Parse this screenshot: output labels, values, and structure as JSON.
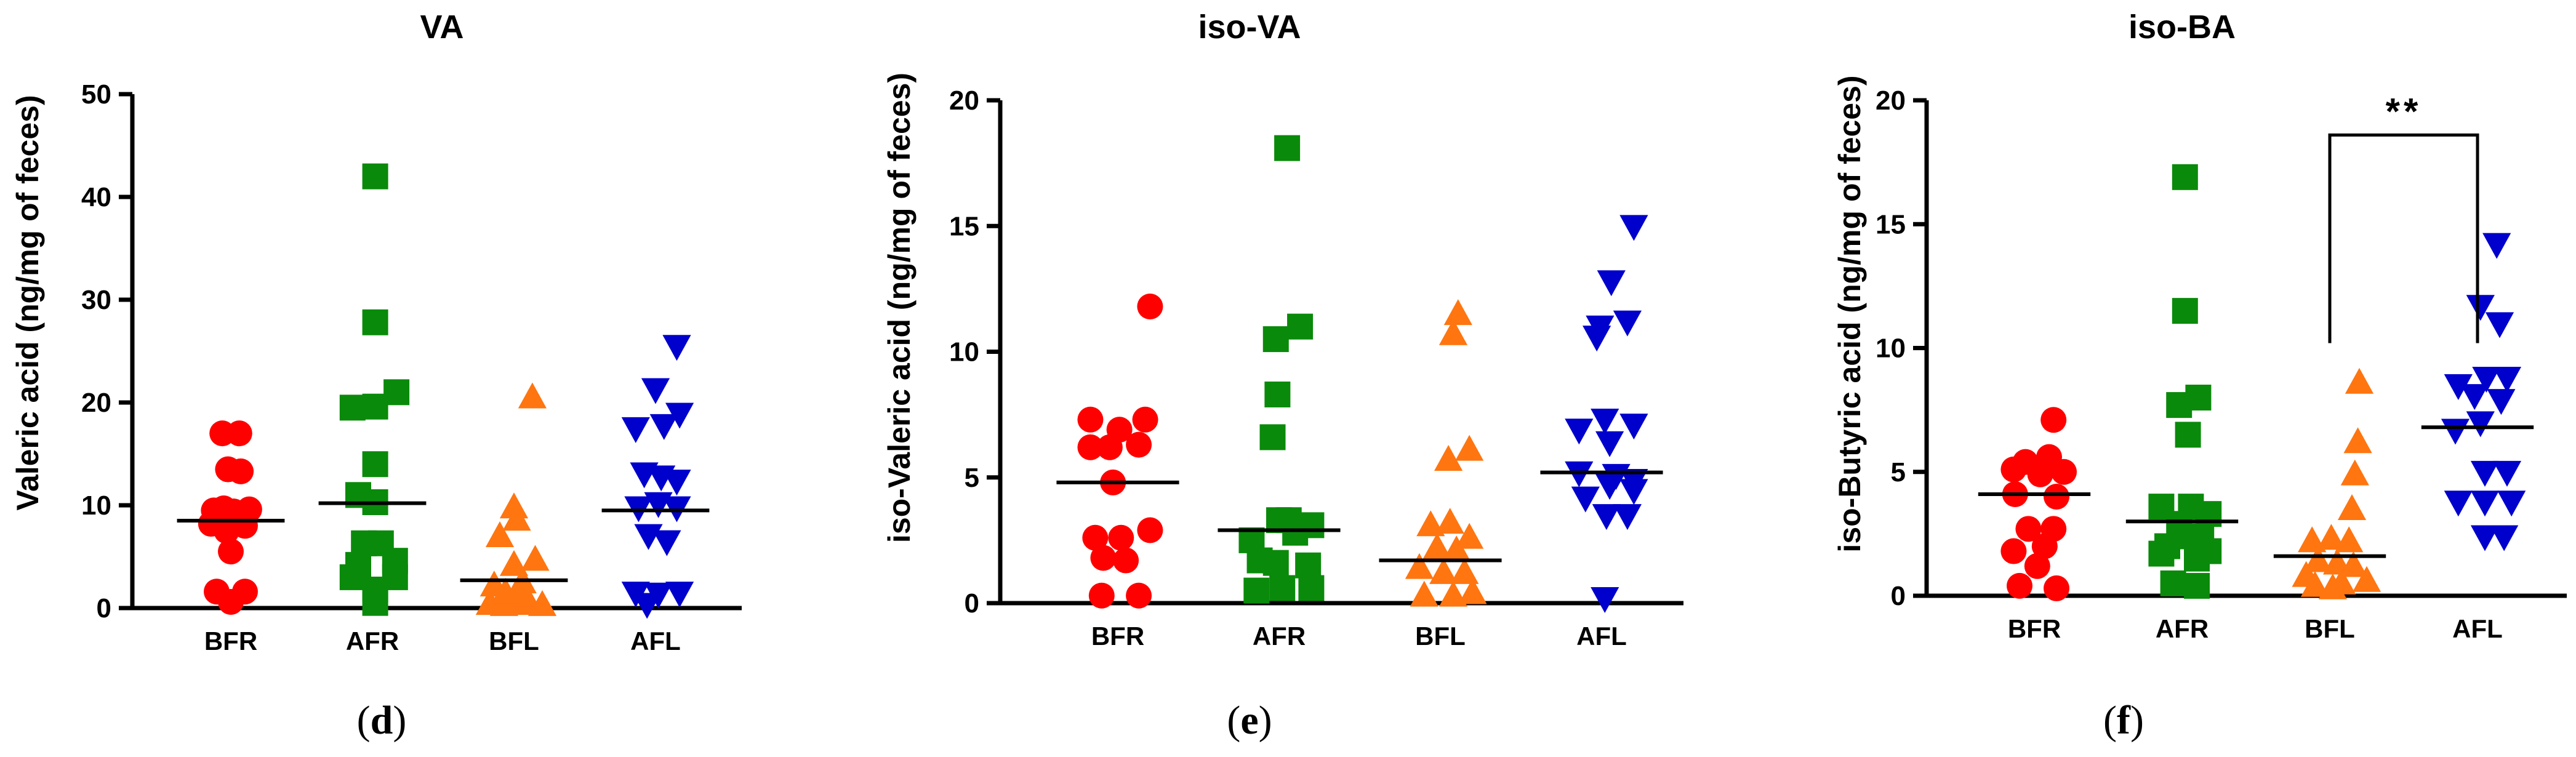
{
  "chart_data": [
    {
      "type": "scatter",
      "title": "VA",
      "panel_label": "(d)",
      "ylabel": "Valeric acid (ng/mg of feces)",
      "ylim": [
        0,
        50
      ],
      "yticks": [
        "0",
        "10",
        "20",
        "30",
        "40",
        "50"
      ],
      "categories": [
        "BFR",
        "AFR",
        "BFL",
        "AFL"
      ],
      "series": [
        {
          "name": "BFR",
          "marker": "circle",
          "color": "#ff0000",
          "median": 8.5,
          "points": [
            [
              -0.06,
              17
            ],
            [
              0.06,
              17
            ],
            [
              -0.02,
              13.5
            ],
            [
              0.07,
              13.3
            ],
            [
              -0.12,
              9.5
            ],
            [
              -0.05,
              9.7
            ],
            [
              0.02,
              9.4
            ],
            [
              0.13,
              9.6
            ],
            [
              -0.14,
              8.2
            ],
            [
              0.1,
              8
            ],
            [
              -0.03,
              7.5
            ],
            [
              0,
              5.5
            ],
            [
              -0.1,
              1.6
            ],
            [
              0.1,
              1.6
            ],
            [
              0,
              0.6
            ]
          ]
        },
        {
          "name": "AFR",
          "marker": "square",
          "color": "#0a8a0a",
          "median": 10.2,
          "points": [
            [
              0.02,
              42
            ],
            [
              0.02,
              27.8
            ],
            [
              -0.14,
              19.5
            ],
            [
              0.02,
              19.6
            ],
            [
              0.17,
              21
            ],
            [
              0.02,
              14
            ],
            [
              -0.1,
              11
            ],
            [
              0.02,
              10.3
            ],
            [
              -0.06,
              6.3
            ],
            [
              0.06,
              6.3
            ],
            [
              -0.1,
              4.2
            ],
            [
              0.16,
              4.6
            ],
            [
              -0.14,
              3
            ],
            [
              0.16,
              3
            ],
            [
              0.02,
              1.8
            ],
            [
              0.02,
              0.5
            ]
          ]
        },
        {
          "name": "BFL",
          "marker": "triangle-up",
          "color": "#ff7510",
          "median": 2.7,
          "points": [
            [
              0.13,
              20.5
            ],
            [
              0,
              9.8
            ],
            [
              -0.1,
              7
            ],
            [
              0.02,
              8.6
            ],
            [
              0.15,
              4.7
            ],
            [
              0,
              4.2
            ],
            [
              -0.14,
              2.2
            ],
            [
              0.06,
              2.5
            ],
            [
              -0.17,
              0.4
            ],
            [
              -0.07,
              0.3
            ],
            [
              0.02,
              0.5
            ],
            [
              0.11,
              0.4
            ],
            [
              0.2,
              0.3
            ],
            [
              0.07,
              1.2
            ],
            [
              -0.06,
              1.5
            ]
          ]
        },
        {
          "name": "AFL",
          "marker": "triangle-down",
          "color": "#0000cc",
          "median": 9.5,
          "points": [
            [
              0.15,
              25.5
            ],
            [
              0,
              21.3
            ],
            [
              0.17,
              18.9
            ],
            [
              -0.14,
              17.5
            ],
            [
              0.06,
              17.8
            ],
            [
              -0.08,
              13.1
            ],
            [
              0.04,
              12.8
            ],
            [
              0.15,
              12.4
            ],
            [
              -0.12,
              9.8
            ],
            [
              0.02,
              10.2
            ],
            [
              0.15,
              9.8
            ],
            [
              -0.05,
              7.1
            ],
            [
              0.08,
              6.5
            ],
            [
              -0.14,
              1.5
            ],
            [
              0.02,
              1.4
            ],
            [
              0.17,
              1.5
            ],
            [
              -0.06,
              0.4
            ]
          ]
        }
      ]
    },
    {
      "type": "scatter",
      "title": "iso-VA",
      "panel_label": "(e)",
      "ylabel": "iso-Valeric acid (ng/mg of feces)",
      "ylim": [
        0,
        20
      ],
      "yticks": [
        "0",
        "5",
        "10",
        "15",
        "20"
      ],
      "categories": [
        "BFR",
        "AFR",
        "BFL",
        "AFL"
      ],
      "series": [
        {
          "name": "BFR",
          "marker": "circle",
          "color": "#ff0000",
          "median": 4.8,
          "points": [
            [
              0.2,
              11.8
            ],
            [
              -0.17,
              7.3
            ],
            [
              0.01,
              6.9
            ],
            [
              0.17,
              7.3
            ],
            [
              -0.17,
              6.2
            ],
            [
              -0.05,
              6.2
            ],
            [
              0.13,
              6.3
            ],
            [
              -0.03,
              4.8
            ],
            [
              -0.14,
              2.6
            ],
            [
              0.02,
              2.6
            ],
            [
              0.2,
              2.9
            ],
            [
              -0.09,
              1.8
            ],
            [
              0.05,
              1.7
            ],
            [
              -0.1,
              0.3
            ],
            [
              0.13,
              0.3
            ]
          ]
        },
        {
          "name": "AFR",
          "marker": "square",
          "color": "#0a8a0a",
          "median": 2.9,
          "points": [
            [
              0.05,
              18.1
            ],
            [
              -0.02,
              10.5
            ],
            [
              0.13,
              11
            ],
            [
              -0.01,
              8.3
            ],
            [
              -0.04,
              6.6
            ],
            [
              0,
              3.3
            ],
            [
              0.06,
              3.3
            ],
            [
              0.2,
              3.1
            ],
            [
              0.1,
              2.8
            ],
            [
              -0.17,
              2.5
            ],
            [
              -0.12,
              1.7
            ],
            [
              -0.02,
              1.6
            ],
            [
              0.18,
              1.5
            ],
            [
              -0.14,
              0.5
            ],
            [
              0.02,
              0.6
            ],
            [
              0.2,
              0.6
            ]
          ]
        },
        {
          "name": "BFL",
          "marker": "triangle-up",
          "color": "#ff7510",
          "median": 1.7,
          "points": [
            [
              0.11,
              11.5
            ],
            [
              0.08,
              10.7
            ],
            [
              0.18,
              6.1
            ],
            [
              0.05,
              5.7
            ],
            [
              -0.06,
              3.1
            ],
            [
              0.06,
              3.2
            ],
            [
              0.18,
              2.6
            ],
            [
              -0.02,
              2.2
            ],
            [
              0.1,
              2.1
            ],
            [
              -0.13,
              1.4
            ],
            [
              0.02,
              1.2
            ],
            [
              0.15,
              1.2
            ],
            [
              -0.1,
              0.3
            ],
            [
              0.08,
              0.3
            ],
            [
              0.2,
              0.4
            ]
          ]
        },
        {
          "name": "AFL",
          "marker": "triangle-down",
          "color": "#0000cc",
          "median": 5.2,
          "points": [
            [
              0.2,
              15
            ],
            [
              0.06,
              12.8
            ],
            [
              -0.01,
              11
            ],
            [
              0.16,
              11.2
            ],
            [
              -0.03,
              10.6
            ],
            [
              0.02,
              7.3
            ],
            [
              0.2,
              7.1
            ],
            [
              -0.14,
              6.9
            ],
            [
              0.05,
              6.4
            ],
            [
              -0.14,
              5.2
            ],
            [
              0.09,
              5.1
            ],
            [
              0.2,
              4.9
            ],
            [
              0.05,
              4.7
            ],
            [
              0.2,
              4.5
            ],
            [
              -0.1,
              4.2
            ],
            [
              0.16,
              3.5
            ],
            [
              0.03,
              3.5
            ],
            [
              0.02,
              0.2
            ]
          ]
        }
      ]
    },
    {
      "type": "scatter",
      "title": "iso-BA",
      "panel_label": "(f)",
      "ylabel": "iso-Butyric acid (ng/mg of feces)",
      "ylim": [
        0,
        20
      ],
      "yticks": [
        "0",
        "5",
        "10",
        "15",
        "20"
      ],
      "categories": [
        "BFR",
        "AFR",
        "BFL",
        "AFL"
      ],
      "significance": {
        "from": "BFL",
        "to": "AFL",
        "label": "**",
        "y": 18.6
      },
      "series": [
        {
          "name": "BFR",
          "marker": "circle",
          "color": "#ff0000",
          "median": 4.1,
          "points": [
            [
              0.13,
              7.1
            ],
            [
              -0.06,
              5.4
            ],
            [
              0.1,
              5.6
            ],
            [
              -0.14,
              5.1
            ],
            [
              0.2,
              5
            ],
            [
              0.04,
              4.9
            ],
            [
              -0.13,
              4.1
            ],
            [
              0.15,
              4
            ],
            [
              -0.04,
              2.7
            ],
            [
              0.13,
              2.7
            ],
            [
              -0.14,
              1.8
            ],
            [
              0.02,
              1.2
            ],
            [
              -0.1,
              0.4
            ],
            [
              0.15,
              0.3
            ],
            [
              0.07,
              2
            ]
          ]
        },
        {
          "name": "AFR",
          "marker": "square",
          "color": "#0a8a0a",
          "median": 3,
          "points": [
            [
              0.02,
              16.9
            ],
            [
              0.02,
              11.5
            ],
            [
              0.11,
              8
            ],
            [
              -0.02,
              7.7
            ],
            [
              0.04,
              6.5
            ],
            [
              -0.14,
              3.6
            ],
            [
              0.06,
              3.6
            ],
            [
              0.18,
              3.3
            ],
            [
              -0.02,
              2.9
            ],
            [
              0.06,
              2.4
            ],
            [
              0.13,
              2.3
            ],
            [
              -0.1,
              2
            ],
            [
              0.18,
              1.8
            ],
            [
              -0.14,
              1.7
            ],
            [
              0.1,
              1.5
            ],
            [
              -0.06,
              0.5
            ],
            [
              0.1,
              0.4
            ]
          ]
        },
        {
          "name": "BFL",
          "marker": "triangle-up",
          "color": "#ff7510",
          "median": 1.6,
          "points": [
            [
              0.2,
              8.6
            ],
            [
              0.19,
              6.2
            ],
            [
              0.17,
              4.9
            ],
            [
              0.15,
              3.5
            ],
            [
              -0.12,
              2.2
            ],
            [
              0.01,
              2.3
            ],
            [
              0.13,
              2.2
            ],
            [
              -0.08,
              1.4
            ],
            [
              0.05,
              1.3
            ],
            [
              0.16,
              1.2
            ],
            [
              -0.16,
              0.8
            ],
            [
              0.08,
              0.5
            ],
            [
              -0.1,
              0.4
            ],
            [
              0.25,
              0.6
            ],
            [
              0.02,
              0.3
            ]
          ]
        },
        {
          "name": "AFL",
          "marker": "triangle-down",
          "color": "#0000cc",
          "median": 6.8,
          "points": [
            [
              0.13,
              14.2
            ],
            [
              0.02,
              11.7
            ],
            [
              0.15,
              11
            ],
            [
              -0.13,
              8.5
            ],
            [
              0.06,
              8.8
            ],
            [
              0.2,
              8.8
            ],
            [
              -0.02,
              8.1
            ],
            [
              0.16,
              7.9
            ],
            [
              -0.15,
              6.7
            ],
            [
              0.02,
              7
            ],
            [
              0.2,
              5
            ],
            [
              0.05,
              5
            ],
            [
              0.23,
              3.8
            ],
            [
              0.05,
              3.8
            ],
            [
              -0.13,
              3.8
            ],
            [
              0.05,
              2.4
            ],
            [
              0.18,
              2.4
            ]
          ]
        }
      ]
    }
  ]
}
